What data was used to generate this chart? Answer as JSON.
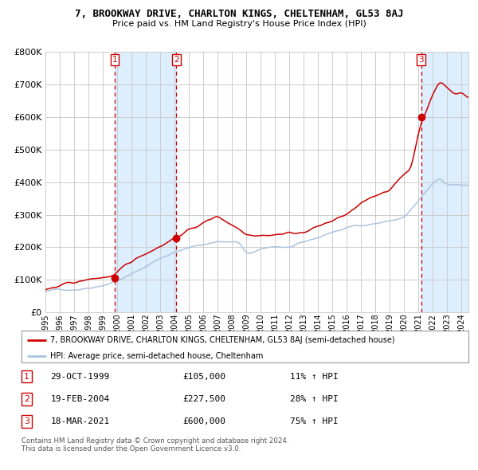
{
  "title": "7, BROOKWAY DRIVE, CHARLTON KINGS, CHELTENHAM, GL53 8AJ",
  "subtitle": "Price paid vs. HM Land Registry's House Price Index (HPI)",
  "legend_property": "7, BROOKWAY DRIVE, CHARLTON KINGS, CHELTENHAM, GL53 8AJ (semi-detached house)",
  "legend_hpi": "HPI: Average price, semi-detached house, Cheltenham",
  "transactions": [
    {
      "label": "1",
      "date": "29-OCT-1999",
      "price": 105000,
      "pct": "11%",
      "x_year": 1999.83
    },
    {
      "label": "2",
      "date": "19-FEB-2004",
      "price": 227500,
      "pct": "28%",
      "x_year": 2004.13
    },
    {
      "label": "3",
      "date": "18-MAR-2021",
      "price": 600000,
      "pct": "75%",
      "x_year": 2021.21
    }
  ],
  "footnote1": "Contains HM Land Registry data © Crown copyright and database right 2024.",
  "footnote2": "This data is licensed under the Open Government Licence v3.0.",
  "property_color": "#cc0000",
  "hpi_color": "#aac4e0",
  "shade_color": "#ddeeff",
  "dashed_color": "#cc0000",
  "grid_color": "#cccccc",
  "bg_color": "#ffffff",
  "ylim": [
    0,
    800000
  ],
  "yticks": [
    0,
    100000,
    200000,
    300000,
    400000,
    500000,
    600000,
    700000,
    800000
  ],
  "xlim_start": 1995.0,
  "xlim_end": 2024.5
}
